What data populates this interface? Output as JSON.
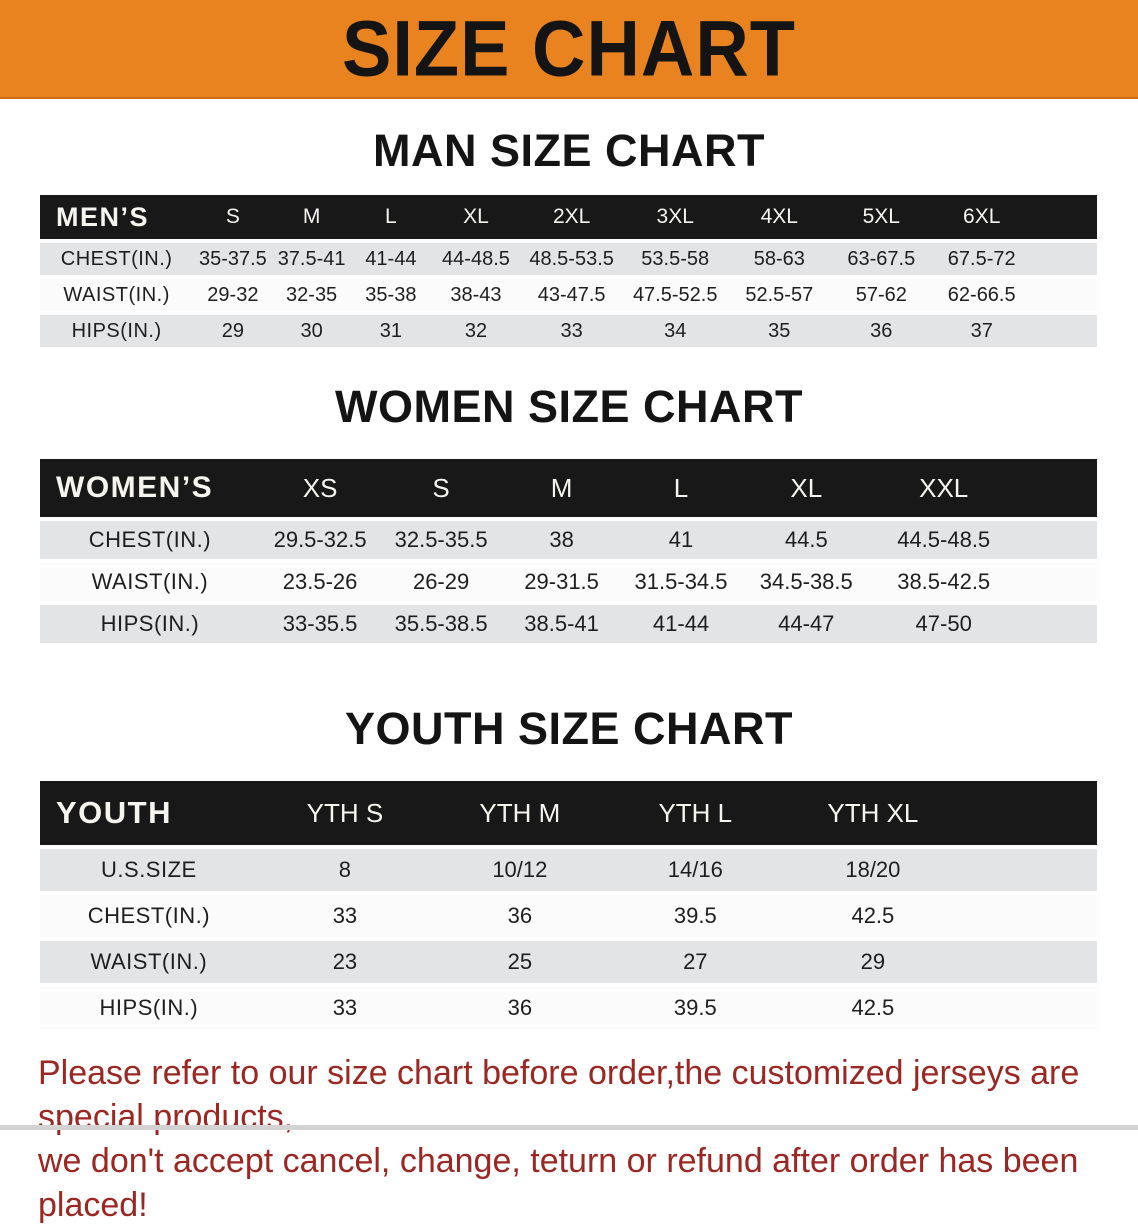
{
  "banner": {
    "title": "SIZE CHART",
    "background_color": "#E8831F",
    "text_color": "#141414"
  },
  "sections": [
    {
      "heading": "MAN SIZE CHART",
      "table": {
        "label": "MEN’S",
        "columns": [
          "S",
          "M",
          "L",
          "XL",
          "2XL",
          "3XL",
          "4XL",
          "5XL",
          "6XL"
        ],
        "rows": [
          {
            "label": "CHEST(IN.)",
            "values": [
              "35-37.5",
              "37.5-41",
              "41-44",
              "44-48.5",
              "48.5-53.5",
              "53.5-58",
              "58-63",
              "63-67.5",
              "67.5-72"
            ]
          },
          {
            "label": "WAIST(IN.)",
            "values": [
              "29-32",
              "32-35",
              "35-38",
              "38-43",
              "43-47.5",
              "47.5-52.5",
              "52.5-57",
              "57-62",
              "62-66.5"
            ]
          },
          {
            "label": "HIPS(IN.)",
            "values": [
              "29",
              "30",
              "31",
              "32",
              "33",
              "34",
              "35",
              "36",
              "37"
            ]
          }
        ]
      }
    },
    {
      "heading": "WOMEN SIZE CHART",
      "table": {
        "label": "WOMEN’S",
        "columns": [
          "XS",
          "S",
          "M",
          "L",
          "XL",
          "XXL"
        ],
        "rows": [
          {
            "label": "CHEST(IN.)",
            "values": [
              "29.5-32.5",
              "32.5-35.5",
              "38",
              "41",
              "44.5",
              "44.5-48.5"
            ]
          },
          {
            "label": "WAIST(IN.)",
            "values": [
              "23.5-26",
              "26-29",
              "29-31.5",
              "31.5-34.5",
              "34.5-38.5",
              "38.5-42.5"
            ]
          },
          {
            "label": "HIPS(IN.)",
            "values": [
              "33-35.5",
              "35.5-38.5",
              "38.5-41",
              "41-44",
              "44-47",
              "47-50"
            ]
          }
        ]
      }
    },
    {
      "heading": "YOUTH SIZE CHART",
      "table": {
        "label": "YOUTH",
        "columns": [
          "YTH S",
          "YTH M",
          "YTH L",
          "YTH XL"
        ],
        "rows": [
          {
            "label": "U.S.SIZE",
            "values": [
              "8",
              "10/12",
              "14/16",
              "18/20"
            ]
          },
          {
            "label": "CHEST(IN.)",
            "values": [
              "33",
              "36",
              "39.5",
              "42.5"
            ]
          },
          {
            "label": "WAIST(IN.)",
            "values": [
              "23",
              "25",
              "27",
              "29"
            ]
          },
          {
            "label": "HIPS(IN.)",
            "values": [
              "33",
              "36",
              "39.5",
              "42.5"
            ]
          }
        ]
      }
    }
  ],
  "disclaimer": {
    "lines": [
      "Please refer to our size chart before order,the customized jerseys are special products,",
      "we don't accept cancel, change, teturn or refund after order has been placed!"
    ],
    "color": "#9B2622"
  }
}
